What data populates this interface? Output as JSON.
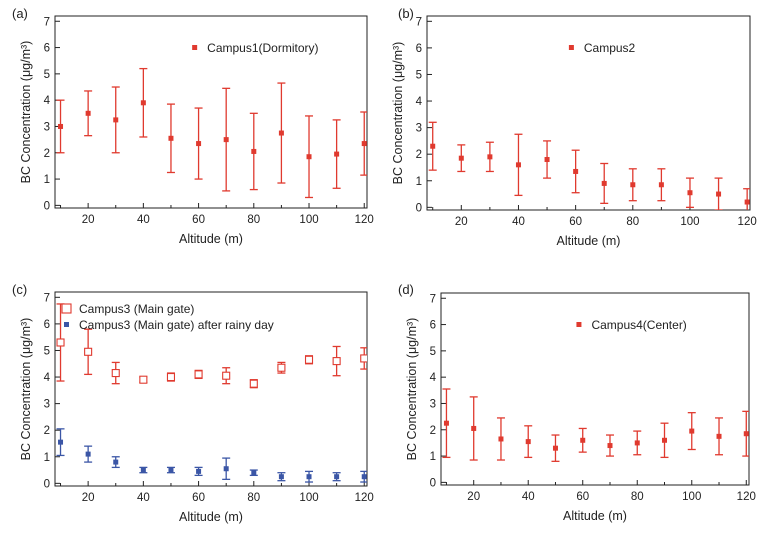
{
  "colors": {
    "red": "#e03a2f",
    "blue": "#3b56a6",
    "axis": "#222222"
  },
  "chart_data": [
    {
      "type": "scatter",
      "panel_label": "(a)",
      "xlabel": "Altitude (m)",
      "ylabel": "BC Concentration (μg/m³)",
      "xlim": [
        8,
        121
      ],
      "ylim": [
        -0.1,
        7.2
      ],
      "xticks": [
        20,
        40,
        60,
        80,
        100,
        120
      ],
      "yticks": [
        0,
        1,
        2,
        3,
        4,
        5,
        6,
        7
      ],
      "legend_position": "top-right",
      "series": [
        {
          "name": "Campus1(Dormitory)",
          "marker": "filled-square",
          "color": "#e03a2f",
          "x": [
            10,
            20,
            30,
            40,
            50,
            60,
            70,
            80,
            90,
            100,
            110,
            120
          ],
          "y": [
            3.0,
            3.5,
            3.25,
            3.9,
            2.55,
            2.35,
            2.5,
            2.05,
            2.75,
            1.85,
            1.95,
            2.35
          ],
          "err": [
            1.0,
            0.85,
            1.25,
            1.3,
            1.3,
            1.35,
            1.95,
            1.45,
            1.9,
            1.55,
            1.3,
            1.2
          ]
        }
      ]
    },
    {
      "type": "scatter",
      "panel_label": "(b)",
      "xlabel": "Altitude (m)",
      "ylabel": "BC Concentration (μg/m³)",
      "xlim": [
        8,
        121
      ],
      "ylim": [
        -0.1,
        7.2
      ],
      "xticks": [
        20,
        40,
        60,
        80,
        100,
        120
      ],
      "yticks": [
        0,
        1,
        2,
        3,
        4,
        5,
        6,
        7
      ],
      "legend_position": "top-right",
      "series": [
        {
          "name": "Campus2",
          "marker": "filled-square",
          "color": "#e03a2f",
          "x": [
            10,
            20,
            30,
            40,
            50,
            60,
            70,
            80,
            90,
            100,
            110,
            120
          ],
          "y": [
            2.3,
            1.85,
            1.9,
            1.6,
            1.8,
            1.35,
            0.9,
            0.85,
            0.85,
            0.55,
            0.5,
            0.2
          ],
          "err": [
            0.9,
            0.5,
            0.55,
            1.15,
            0.7,
            0.8,
            0.75,
            0.6,
            0.6,
            0.55,
            0.6,
            0.5
          ]
        }
      ]
    },
    {
      "type": "scatter",
      "panel_label": "(c)",
      "xlabel": "Altitude (m)",
      "ylabel": "BC Concentration (μg/m³)",
      "xlim": [
        8,
        121
      ],
      "ylim": [
        -0.1,
        7.2
      ],
      "xticks": [
        20,
        40,
        60,
        80,
        100,
        120
      ],
      "yticks": [
        0,
        1,
        2,
        3,
        4,
        5,
        6,
        7
      ],
      "legend_position": "top-left",
      "series": [
        {
          "name": "Campus3 (Main gate)",
          "marker": "open-square",
          "color": "#e03a2f",
          "x": [
            10,
            20,
            30,
            40,
            50,
            60,
            70,
            80,
            90,
            100,
            110,
            120
          ],
          "y": [
            5.3,
            4.95,
            4.15,
            3.9,
            4.0,
            4.1,
            4.05,
            3.75,
            4.35,
            4.65,
            4.6,
            4.7
          ],
          "err": [
            1.45,
            0.85,
            0.4,
            0.1,
            0.15,
            0.15,
            0.3,
            0.15,
            0.2,
            0.15,
            0.55,
            0.4
          ]
        },
        {
          "name": "Campus3 (Main gate) after rainy day",
          "marker": "filled-square",
          "color": "#3b56a6",
          "x": [
            10,
            20,
            30,
            40,
            50,
            60,
            70,
            80,
            90,
            100,
            110,
            120
          ],
          "y": [
            1.55,
            1.1,
            0.8,
            0.5,
            0.5,
            0.45,
            0.55,
            0.4,
            0.25,
            0.25,
            0.25,
            0.25
          ],
          "err": [
            0.5,
            0.3,
            0.2,
            0.1,
            0.1,
            0.15,
            0.4,
            0.1,
            0.15,
            0.2,
            0.15,
            0.2
          ]
        }
      ]
    },
    {
      "type": "scatter",
      "panel_label": "(d)",
      "xlabel": "Altitude (m)",
      "ylabel": "BC Concentration (μg/m³)",
      "xlim": [
        8,
        121
      ],
      "ylim": [
        -0.1,
        7.2
      ],
      "xticks": [
        20,
        40,
        60,
        80,
        100,
        120
      ],
      "yticks": [
        0,
        1,
        2,
        3,
        4,
        5,
        6,
        7
      ],
      "legend_position": "top-right",
      "series": [
        {
          "name": "Campus4(Center)",
          "marker": "filled-square",
          "color": "#e03a2f",
          "x": [
            10,
            20,
            30,
            40,
            50,
            60,
            70,
            80,
            90,
            100,
            110,
            120
          ],
          "y": [
            2.25,
            2.05,
            1.65,
            1.55,
            1.3,
            1.6,
            1.4,
            1.5,
            1.6,
            1.95,
            1.75,
            1.85
          ],
          "err": [
            1.3,
            1.2,
            0.8,
            0.6,
            0.5,
            0.45,
            0.4,
            0.45,
            0.65,
            0.7,
            0.7,
            0.85
          ]
        }
      ]
    }
  ]
}
